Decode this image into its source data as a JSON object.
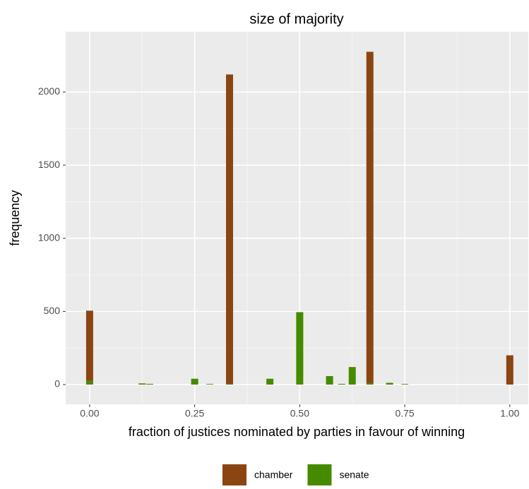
{
  "chart_data": {
    "type": "histogram",
    "title": "size of majority",
    "x_label": "fraction of justices nominated by parties in favour of winning",
    "y_label": "frequency",
    "x": [
      0,
      0.125,
      0.143,
      0.25,
      0.286,
      0.333,
      0.429,
      0.5,
      0.571,
      0.6,
      0.625,
      0.667,
      0.714,
      0.75,
      1
    ],
    "series": [
      {
        "name": "chamber",
        "color": "#8b4513",
        "values": [
          480,
          0,
          0,
          0,
          0,
          2115,
          0,
          0,
          0,
          0,
          0,
          2265,
          0,
          0,
          200
        ]
      },
      {
        "name": "senate",
        "color": "#458b00",
        "values": [
          25,
          8,
          5,
          40,
          4,
          5,
          40,
          495,
          58,
          5,
          120,
          10,
          12,
          4,
          0
        ]
      }
    ],
    "stacked": true,
    "xlim": [
      -0.057,
      1.044
    ],
    "ylim": [
      -135,
      2412
    ],
    "xticks": [
      {
        "value": 0,
        "label": "0.00"
      },
      {
        "value": 0.25,
        "label": "0.25"
      },
      {
        "value": 0.5,
        "label": "0.50"
      },
      {
        "value": 0.75,
        "label": "0.75"
      },
      {
        "value": 1,
        "label": "1.00"
      }
    ],
    "yticks": [
      0,
      500,
      1000,
      1500,
      2000
    ],
    "grid": true,
    "legend": "bottom"
  }
}
